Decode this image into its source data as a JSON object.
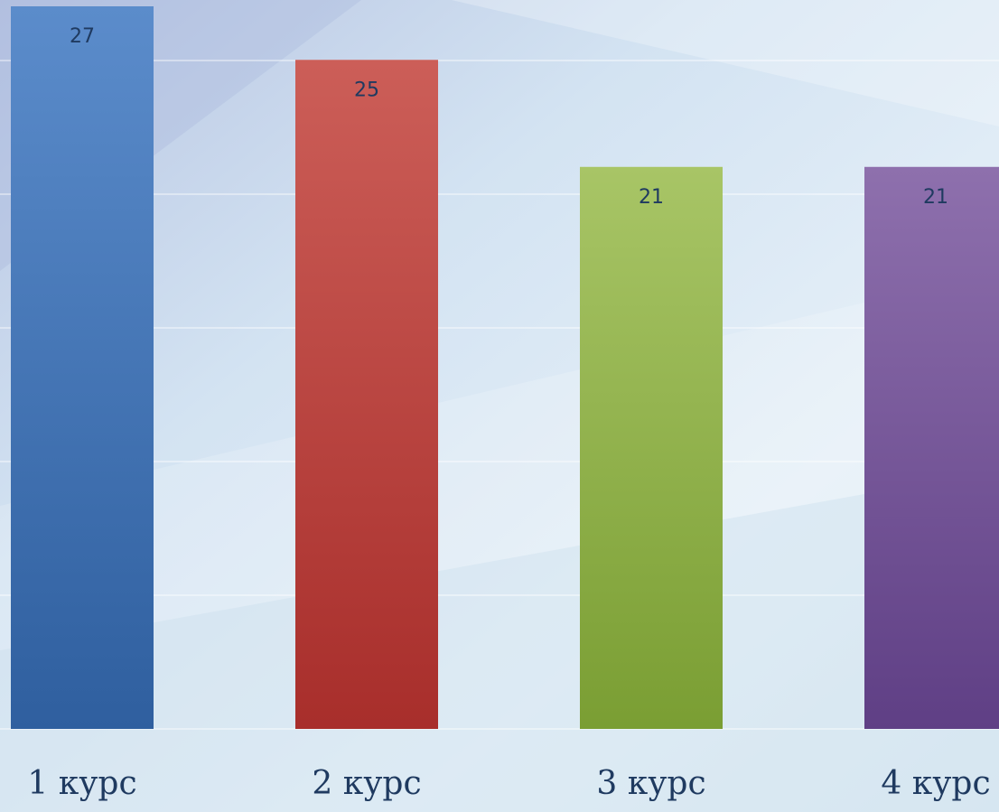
{
  "chart_data": {
    "type": "bar",
    "categories": [
      "1 курс",
      "2 курс",
      "3 курс",
      "4 курс"
    ],
    "values": [
      27,
      25,
      21,
      21
    ],
    "data_labels": [
      "27",
      "25",
      "21",
      "21"
    ],
    "ylim": [
      0,
      27.2
    ],
    "grid": true,
    "legend": "none",
    "bar_colors": [
      {
        "top": "#5b8ccb",
        "bottom": "#2f5f9f"
      },
      {
        "top": "#cc5e58",
        "bottom": "#a82e2b"
      },
      {
        "top": "#a8c566",
        "bottom": "#7a9e33"
      },
      {
        "top": "#8e70ad",
        "bottom": "#5f3f85"
      }
    ],
    "label_color": "#1f3a60"
  }
}
